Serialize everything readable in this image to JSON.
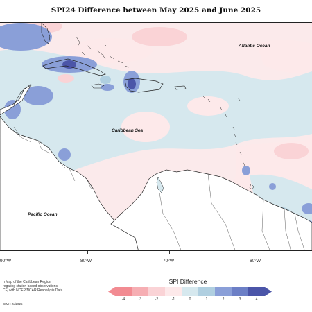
{
  "title": "SPI24 Difference between May 2025 and June 2025",
  "ocean_labels": {
    "atlantic": "Atlantic Ocean",
    "caribbean": "Caribbean Sea",
    "pacific": "Pacific Ocean"
  },
  "longitude_ticks": [
    "90°W",
    "80°W",
    "70°W",
    "60°W"
  ],
  "legend": {
    "title": "SPI Difference",
    "ticks": [
      "-4",
      "-3",
      "-2",
      "-1",
      "0",
      "1",
      "2",
      "3",
      "4"
    ],
    "colors": [
      "#f28b92",
      "#f6aeb3",
      "#fad3d6",
      "#fde9ea",
      "#d6e8ee",
      "#b0cfe0",
      "#8a9fd8",
      "#6c7fc6",
      "#4b55a8"
    ]
  },
  "footnote_lines": [
    "n Map of the Caribbean Region",
    "regating station based observations,",
    "CF, with NCEP/NCAR Reanalysis Data."
  ],
  "copyright": "CIMH Jul2025"
}
